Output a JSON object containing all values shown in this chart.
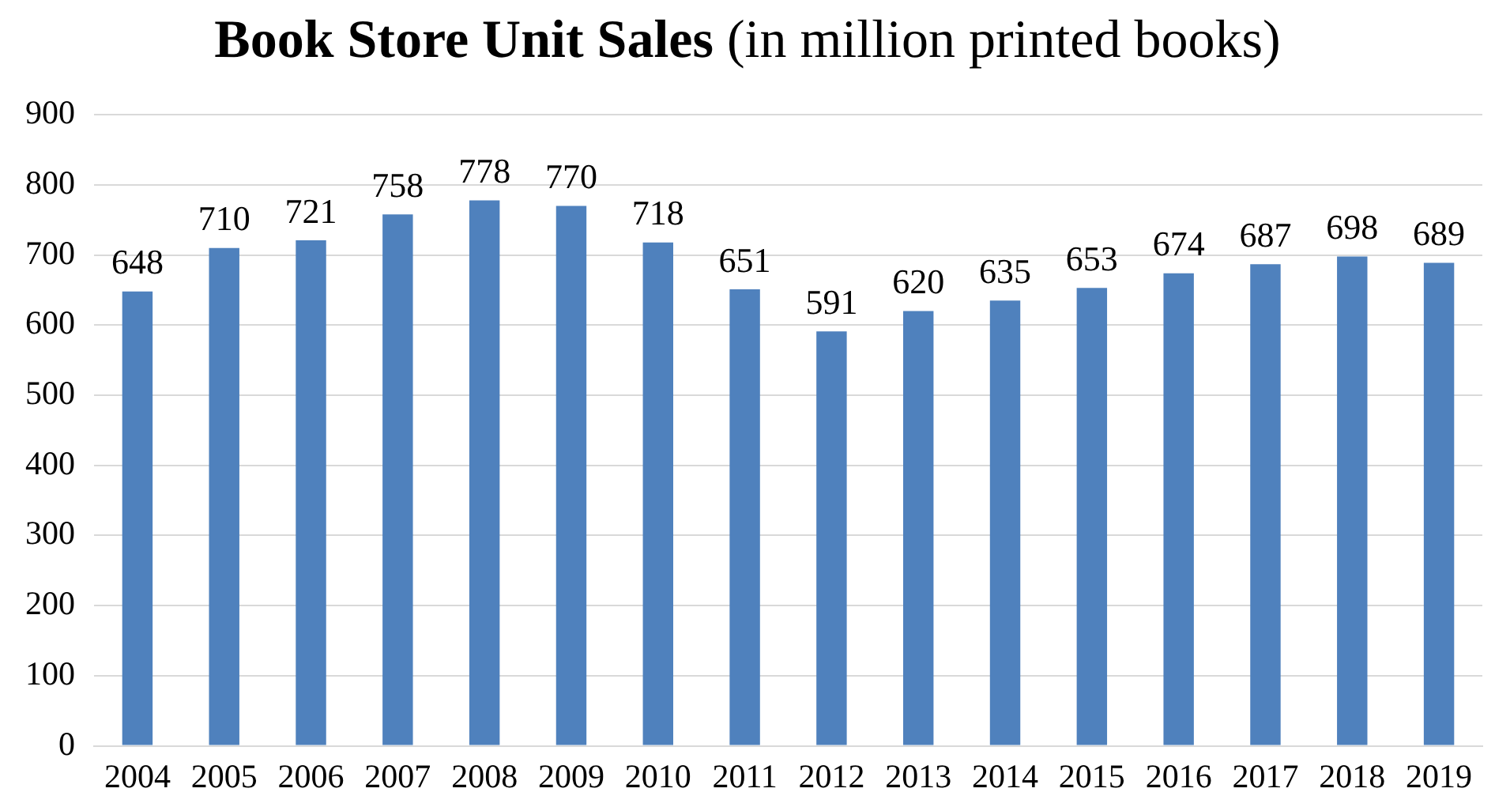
{
  "chart_data": {
    "type": "bar",
    "title": "Book Store Unit Sales",
    "subtitle": "(in million printed books)",
    "categories": [
      "2004",
      "2005",
      "2006",
      "2007",
      "2008",
      "2009",
      "2010",
      "2011",
      "2012",
      "2013",
      "2014",
      "2015",
      "2016",
      "2017",
      "2018",
      "2019"
    ],
    "values": [
      648,
      710,
      721,
      758,
      778,
      770,
      718,
      651,
      591,
      620,
      635,
      653,
      674,
      687,
      698,
      689
    ],
    "color": "#4f81bd",
    "ylim": [
      0,
      900
    ],
    "yticks": [
      0,
      100,
      200,
      300,
      400,
      500,
      600,
      700,
      800,
      900
    ],
    "grid": "y",
    "data_labels": true,
    "legend": false
  }
}
